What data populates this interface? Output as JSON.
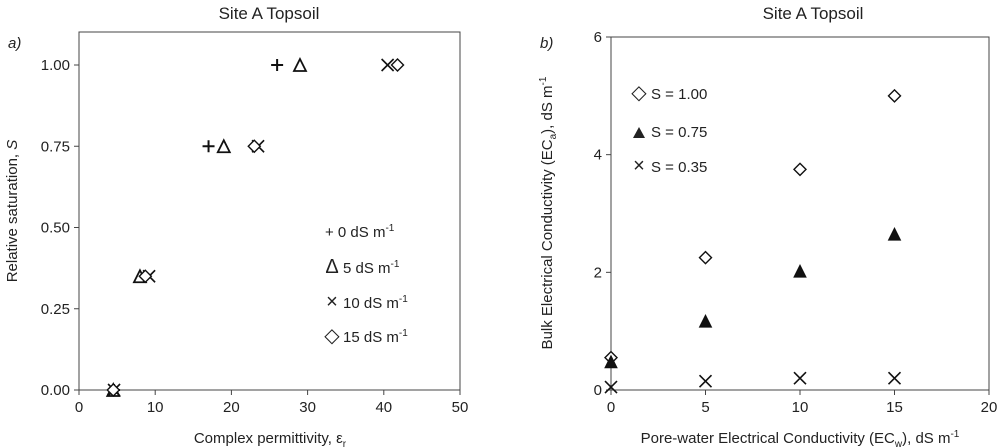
{
  "chart_data": [
    {
      "type": "scatter",
      "panel_label": "a)",
      "title": "Site A Topsoil",
      "xlabel": "Complex permittivity, ε",
      "xlabel_sub": "r",
      "ylabel": "Relative saturation, ",
      "ylabel_var": "S",
      "xlim": [
        0,
        50
      ],
      "ylim": [
        0,
        1.0
      ],
      "xticks": [
        "0",
        "10",
        "20",
        "30",
        "40",
        "50"
      ],
      "yticks": [
        "0.00",
        "0.25",
        "0.50",
        "0.75",
        "1.00"
      ],
      "legend_position": "right",
      "series": [
        {
          "name": "+ 0 dS m",
          "unit_sup": "-1",
          "marker": "+",
          "points": [
            [
              4.6,
              0.0
            ],
            [
              17.0,
              0.75
            ],
            [
              26.0,
              1.0
            ]
          ]
        },
        {
          "name": "5 dS m",
          "unit_sup": "-1",
          "marker": "Δ",
          "points": [
            [
              4.5,
              0.0
            ],
            [
              19.0,
              0.75
            ],
            [
              29.0,
              1.0
            ],
            [
              8.0,
              0.35
            ]
          ]
        },
        {
          "name": "10 dS m",
          "unit_sup": "-1",
          "marker": "×",
          "points": [
            [
              4.6,
              0.0
            ],
            [
              23.5,
              0.75
            ],
            [
              40.5,
              1.0
            ],
            [
              9.2,
              0.35
            ]
          ]
        },
        {
          "name": "15 dS m",
          "unit_sup": "-1",
          "marker": "◇",
          "points": [
            [
              4.5,
              0.0
            ],
            [
              23.0,
              0.75
            ],
            [
              41.8,
              1.0
            ],
            [
              8.7,
              0.35
            ]
          ]
        }
      ]
    },
    {
      "type": "scatter",
      "panel_label": "b)",
      "title": "Site A Topsoil",
      "xlabel": "Pore-water Electrical Conductivity (EC",
      "xlabel_sub": "w",
      "xlabel_tail": "),  dS m",
      "xlabel_sup": "-1",
      "ylabel": "Bulk Electrical Conductivity (EC",
      "ylabel_sub": "a",
      "ylabel_tail": "),  dS m",
      "ylabel_sup": "-1",
      "xlim": [
        0,
        20
      ],
      "ylim": [
        0,
        6
      ],
      "xticks": [
        "0",
        "5",
        "10",
        "15",
        "20"
      ],
      "yticks": [
        "0",
        "2",
        "4",
        "6"
      ],
      "legend_position": "top-left",
      "series": [
        {
          "name": "S = 1.00",
          "marker": "◇",
          "points": [
            [
              0,
              0.55
            ],
            [
              5,
              2.25
            ],
            [
              10,
              3.75
            ],
            [
              15,
              5.0
            ]
          ]
        },
        {
          "name": "S = 0.75",
          "marker": "▲",
          "points": [
            [
              0,
              0.48
            ],
            [
              5,
              1.17
            ],
            [
              10,
              2.02
            ],
            [
              15,
              2.65
            ]
          ]
        },
        {
          "name": "S = 0.35",
          "marker": "×",
          "points": [
            [
              0,
              0.05
            ],
            [
              5,
              0.15
            ],
            [
              10,
              0.2
            ],
            [
              15,
              0.2
            ]
          ]
        }
      ]
    }
  ]
}
